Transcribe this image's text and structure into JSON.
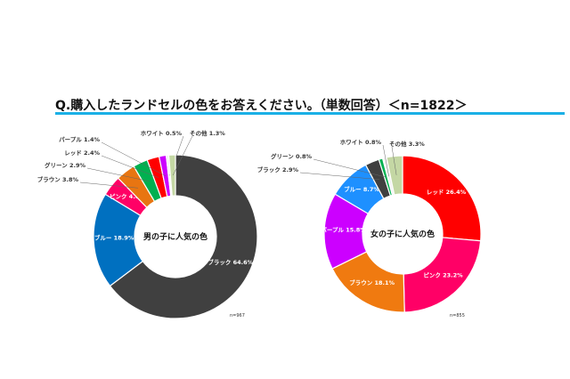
{
  "title": "Q.購入したランドセルの色をお答えください。（単数回答）＜n=1822＞",
  "accent": "#1ab0e6",
  "chart_data": [
    {
      "type": "pie",
      "title": "男の子に人気の色",
      "note": "n=967",
      "categories": [
        "ブラック",
        "ブルー",
        "ピンク",
        "ブラウン",
        "グリーン",
        "レッド",
        "パープル",
        "ホワイト",
        "その他"
      ],
      "values": [
        64.6,
        18.9,
        4.0,
        3.8,
        2.9,
        2.4,
        1.4,
        0.5,
        1.3
      ],
      "colors": [
        "#404040",
        "#0070c0",
        "#ff0066",
        "#e87511",
        "#00b050",
        "#ff0000",
        "#cc00ff",
        "#f2f2f2",
        "#c4d7a4"
      ]
    },
    {
      "type": "pie",
      "title": "女の子に人気の色",
      "note": "n=855",
      "categories": [
        "レッド",
        "ピンク",
        "ブラウン",
        "パープル",
        "ブルー",
        "ブラック",
        "グリーン",
        "ホワイト",
        "その他"
      ],
      "values": [
        26.4,
        23.2,
        18.1,
        15.8,
        8.7,
        2.9,
        0.8,
        0.8,
        3.3
      ],
      "colors": [
        "#ff0000",
        "#ff0066",
        "#f07a10",
        "#cc00ff",
        "#1e90ff",
        "#404040",
        "#00b050",
        "#f2f2f2",
        "#c4d7a4"
      ]
    }
  ]
}
